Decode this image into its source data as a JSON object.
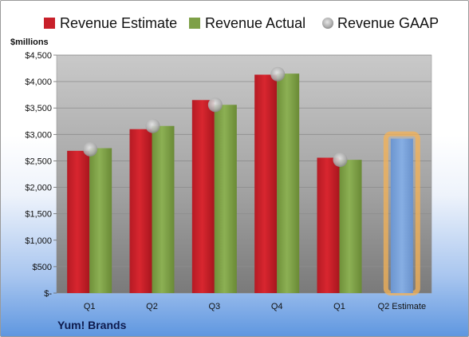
{
  "colors": {
    "estimate": "#c8202a",
    "actual": "#7ea047",
    "gaap": "#b3b3b3",
    "highlight": "#f4b256",
    "projected": "#7ba3d9"
  },
  "legend": [
    {
      "label": "Revenue Estimate",
      "marker": "square",
      "color": "#c8202a"
    },
    {
      "label": "Revenue Actual",
      "marker": "square",
      "color": "#7ea047"
    },
    {
      "label": "Revenue GAAP",
      "marker": "circle",
      "color": "#b3b3b3"
    }
  ],
  "company": "Yum! Brands",
  "chart_data": {
    "type": "bar",
    "unit_label": "$millions",
    "categories": [
      "Q1",
      "Q2",
      "Q3",
      "Q4",
      "Q1",
      "Q2 Estimate"
    ],
    "y_tick_labels": [
      "$-",
      "$500",
      "$1,000",
      "$1,500",
      "$2,000",
      "$2,500",
      "$3,000",
      "$3,500",
      "$4,000",
      "$4,500"
    ],
    "ylim": [
      0,
      4500
    ],
    "ystep": 500,
    "grid": true,
    "legend_position": "top",
    "series": [
      {
        "name": "Revenue Estimate",
        "type": "bar",
        "values": [
          2690,
          3100,
          3650,
          4130,
          2560,
          null
        ]
      },
      {
        "name": "Revenue Actual",
        "type": "bar",
        "values": [
          2740,
          3160,
          3560,
          4150,
          2520,
          2920
        ]
      },
      {
        "name": "Revenue GAAP",
        "type": "marker",
        "values": [
          2720,
          3160,
          3560,
          4140,
          2520,
          null
        ]
      }
    ],
    "highlighted_category_index": 5
  }
}
